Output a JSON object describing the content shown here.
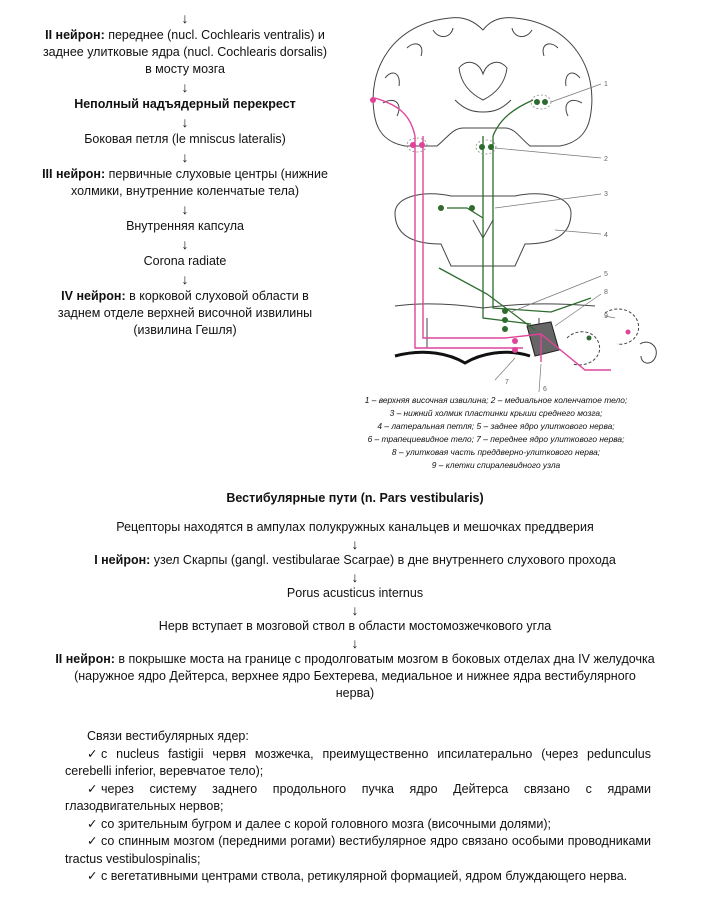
{
  "auditory": {
    "arrow": "↓",
    "neuron2_label": "II нейрон:",
    "neuron2_text": " переднее (nucl. Cochlearis ventralis) и заднее улитковые ядра (nucl. Cochlearis dorsalis) в мосту мозга",
    "decussation": "Неполный надъядерный перекрест",
    "lemniscus": "Боковая петля (le mniscus lateralis)",
    "neuron3_label": "III нейрон:",
    "neuron3_text": " первичные слуховые центры (нижние холмики, внутренние коленчатые тела)",
    "capsule": "Внутренняя капсула",
    "corona": "Corona radiate",
    "neuron4_label": "IV нейрон:",
    "neuron4_text": " в корковой слуховой области в заднем отделе верхней височной извилины (извилина Гешля)"
  },
  "figure": {
    "numbers": [
      "1",
      "2",
      "3",
      "4",
      "5",
      "8",
      "9",
      "7",
      "6"
    ],
    "colors": {
      "pink": "#e0449a",
      "green": "#2e6b2e",
      "outline": "#444444"
    }
  },
  "caption": {
    "lines": [
      "1 – верхняя височная извилина; 2 – медиальное коленчатое тело;",
      "3 – нижний холмик пластинки крыши среднего мозга;",
      "4 – латеральная петля; 5 – заднее ядро улиткового нерва;",
      "6 – трапециевидное тело; 7 – переднее ядро улиткового нерва;",
      "8 – улитковая часть преддверно-улиткового нерва;",
      "9 – клетки спиралевидного узла"
    ]
  },
  "vestibular": {
    "heading": "Вестибулярные пути (n. Pars vestibularis)",
    "arrow": "↓",
    "receptors": "Рецепторы находятся в ампулах полукружных канальцев и мешочках преддверия",
    "neuron1_label": "I нейрон:",
    "neuron1_text": " узел Скарпы (gangl. vestibularae Scarpae) в дне внутреннего слухового прохода",
    "porus": "Porus acusticus internus",
    "nerve": "Нерв вступает в мозговой ствол в области мостомозжечкового угла",
    "neuron2_label": "II нейрон:",
    "neuron2_text": " в покрышке моста на границе с продолговатым мозгом в боковых отделах дна IV желудочка (наружное ядро Дейтерса, верхнее ядро Бехтерева, медиальное и нижнее ядра вестибулярного нерва)"
  },
  "links": {
    "lead": "Связи вестибулярных ядер:",
    "check": "✓",
    "items": [
      "с nucleus fastigii червя мозжечка, преимущественно ипсилатерально (через pedunculus cerebelli inferior, веревчатое тело);",
      "через систему заднего продольного пучка ядро Дейтерса связано с ядрами глазодвигательных нервов;",
      "со зрительным бугром и далее с корой головного мозга (височными долями);",
      "со спинным мозгом (передними рогами) вестибулярное ядро связано особыми проводниками tractus vestibulospinalis;",
      "с вегетативными центрами ствола, ретикулярной формацией, ядром блуждающего нерва."
    ]
  }
}
